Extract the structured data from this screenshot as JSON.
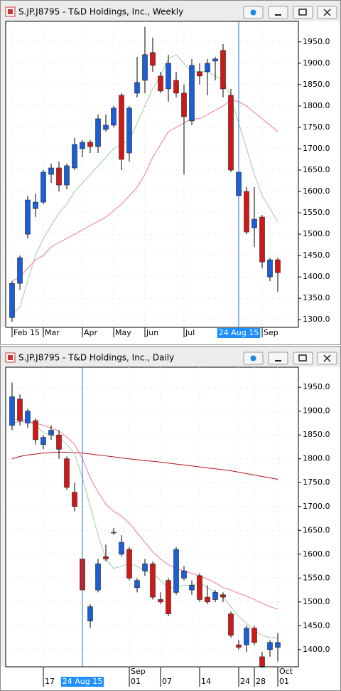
{
  "chart_data": [
    {
      "type": "candlestick",
      "title": "S.JP.J8795 - T&D Holdings, Inc., Weekly",
      "categories": [
        "Feb 15",
        null,
        null,
        null,
        "Mar",
        null,
        null,
        null,
        null,
        "Apr",
        null,
        null,
        null,
        "May",
        null,
        null,
        null,
        "Jun",
        null,
        null,
        null,
        null,
        "Jul",
        null,
        null,
        null,
        null,
        null,
        null,
        "24 Aug 15",
        null,
        null,
        "Sep",
        null,
        null
      ],
      "cursor": "24 Aug 15",
      "open": [
        1305,
        1385,
        1500,
        1560,
        1575,
        1640,
        1655,
        1615,
        1655,
        1700,
        1715,
        1705,
        1745,
        1755,
        1825,
        1690,
        1830,
        1860,
        1925,
        1870,
        1840,
        1860,
        1830,
        1765,
        1880,
        1880,
        1905,
        1930,
        1825,
        1590,
        1600,
        1515,
        1540,
        1400,
        1440
      ],
      "high": [
        1390,
        1450,
        1590,
        1595,
        1650,
        1665,
        1670,
        1665,
        1725,
        1720,
        1720,
        1780,
        1780,
        1800,
        1830,
        1800,
        1915,
        1985,
        1960,
        1880,
        1920,
        1880,
        1850,
        1910,
        1900,
        1910,
        1915,
        1945,
        1840,
        1645,
        1610,
        1610,
        1545,
        1445,
        1445
      ],
      "low": [
        1295,
        1370,
        1490,
        1540,
        1570,
        1620,
        1600,
        1605,
        1650,
        1680,
        1690,
        1690,
        1740,
        1750,
        1650,
        1670,
        1820,
        1830,
        1880,
        1830,
        1810,
        1820,
        1640,
        1755,
        1850,
        1825,
        1860,
        1820,
        1645,
        1580,
        1500,
        1470,
        1420,
        1390,
        1365
      ],
      "close": [
        1385,
        1445,
        1580,
        1575,
        1645,
        1655,
        1615,
        1660,
        1710,
        1715,
        1705,
        1770,
        1755,
        1795,
        1675,
        1795,
        1855,
        1920,
        1895,
        1835,
        1900,
        1830,
        1775,
        1895,
        1870,
        1900,
        1910,
        1840,
        1650,
        1645,
        1505,
        1535,
        1435,
        1440,
        1410
      ],
      "up_color": "#1a5fd6",
      "down_color": "#d01818",
      "moving_averages": [
        {
          "color": "#9ccf9c",
          "values": [
            1310,
            1330,
            1390,
            1450,
            1490,
            1520,
            1550,
            1570,
            1600,
            1620,
            1640,
            1660,
            1680,
            1700,
            1710,
            1720,
            1760,
            1800,
            1840,
            1870,
            1910,
            1920,
            1900,
            1880,
            1880,
            1880,
            1870,
            1860,
            1820,
            1760,
            1700,
            1640,
            1590,
            1560,
            1530
          ]
        },
        {
          "color": "#ee7a95",
          "values": [
            1390,
            1400,
            1420,
            1440,
            1450,
            1470,
            1480,
            1490,
            1500,
            1510,
            1520,
            1530,
            1540,
            1555,
            1570,
            1590,
            1610,
            1640,
            1680,
            1710,
            1740,
            1750,
            1760,
            1770,
            1770,
            1780,
            1790,
            1800,
            1815,
            1810,
            1800,
            1785,
            1770,
            1755,
            1740
          ]
        }
      ],
      "ylim": [
        1282,
        1998
      ],
      "yticks": [
        {
          "value": 1300,
          "label": "1300.0"
        },
        {
          "value": 1350,
          "label": "1350.0"
        },
        {
          "value": 1400,
          "label": "1400.0"
        },
        {
          "value": 1450,
          "label": "1450.0"
        },
        {
          "value": 1500,
          "label": "1500.0"
        },
        {
          "value": 1550,
          "label": "1550.0"
        },
        {
          "value": 1600,
          "label": "1600.0"
        },
        {
          "value": 1650,
          "label": "1650.0"
        },
        {
          "value": 1700,
          "label": "1700.0"
        },
        {
          "value": 1750,
          "label": "1750.0"
        },
        {
          "value": 1800,
          "label": "1800.0"
        },
        {
          "value": 1850,
          "label": "1850.0"
        },
        {
          "value": 1900,
          "label": "1900.0"
        },
        {
          "value": 1950,
          "label": "1950.0"
        }
      ],
      "grid": true
    },
    {
      "type": "candlestick",
      "title": "S.JP.J8795 - T&D Holdings, Inc., Daily",
      "categories": [
        null,
        null,
        null,
        null,
        "17",
        null,
        null,
        null,
        null,
        "24 Aug 15",
        null,
        null,
        null,
        null,
        null,
        "01",
        null,
        null,
        null,
        "07",
        null,
        null,
        null,
        null,
        "14",
        null,
        null,
        null,
        null,
        "24",
        null,
        "28",
        null,
        null,
        "01"
      ],
      "months": [
        null,
        null,
        null,
        null,
        null,
        null,
        null,
        null,
        null,
        null,
        null,
        null,
        null,
        null,
        null,
        "Sep",
        null,
        null,
        null,
        null,
        null,
        null,
        null,
        null,
        null,
        null,
        null,
        null,
        null,
        null,
        null,
        null,
        null,
        null,
        "Oct"
      ],
      "cursor": "24 Aug 15",
      "open": [
        1870,
        1925,
        1875,
        1880,
        1830,
        1850,
        1850,
        1800,
        1730,
        1590,
        1460,
        1525,
        1595,
        1645,
        1600,
        1610,
        1530,
        1565,
        1580,
        1505,
        1545,
        1520,
        1550,
        1525,
        1555,
        1510,
        1505,
        1515,
        1475,
        1410,
        1410,
        1445,
        1385,
        1400,
        1405
      ],
      "high": [
        1960,
        1935,
        1905,
        1885,
        1850,
        1870,
        1860,
        1805,
        1750,
        1600,
        1495,
        1590,
        1620,
        1655,
        1640,
        1615,
        1550,
        1590,
        1585,
        1520,
        1550,
        1615,
        1575,
        1545,
        1560,
        1535,
        1525,
        1520,
        1480,
        1420,
        1450,
        1450,
        1395,
        1420,
        1435
      ],
      "low": [
        1860,
        1870,
        1865,
        1830,
        1820,
        1840,
        1800,
        1735,
        1690,
        1520,
        1445,
        1520,
        1585,
        1640,
        1595,
        1545,
        1520,
        1555,
        1505,
        1495,
        1470,
        1515,
        1545,
        1515,
        1500,
        1495,
        1500,
        1500,
        1425,
        1400,
        1395,
        1410,
        1362,
        1385,
        1375
      ],
      "close": [
        1930,
        1880,
        1900,
        1840,
        1845,
        1860,
        1820,
        1740,
        1700,
        1525,
        1490,
        1580,
        1590,
        1646,
        1625,
        1550,
        1545,
        1580,
        1510,
        1500,
        1475,
        1610,
        1565,
        1535,
        1505,
        1500,
        1520,
        1510,
        1430,
        1405,
        1445,
        1415,
        1365,
        1415,
        1415
      ],
      "up_color": "#1a5fd6",
      "down_color": "#d01818",
      "moving_averages": [
        {
          "color": "#b40f1c",
          "values": [
            1800,
            1805,
            1808,
            1810,
            1812,
            1813,
            1814,
            1814,
            1813,
            1812,
            1810,
            1808,
            1806,
            1804,
            1802,
            1800,
            1798,
            1796,
            1795,
            1793,
            1791,
            1789,
            1787,
            1785,
            1783,
            1781,
            1779,
            1777,
            1775,
            1772,
            1769,
            1766,
            1763,
            1760,
            1757
          ]
        },
        {
          "color": "#ee7a95",
          "values": [
            1875,
            1878,
            1878,
            1875,
            1870,
            1865,
            1858,
            1845,
            1830,
            1800,
            1760,
            1730,
            1705,
            1690,
            1680,
            1665,
            1645,
            1625,
            1605,
            1590,
            1578,
            1570,
            1565,
            1560,
            1555,
            1548,
            1540,
            1530,
            1525,
            1518,
            1512,
            1505,
            1497,
            1490,
            1485
          ]
        },
        {
          "color": "#9ccf9c",
          "values": [
            1880,
            1885,
            1880,
            1870,
            1855,
            1850,
            1845,
            1830,
            1810,
            1760,
            1700,
            1640,
            1590,
            1570,
            1575,
            1580,
            1575,
            1565,
            1560,
            1545,
            1530,
            1530,
            1535,
            1535,
            1540,
            1530,
            1520,
            1510,
            1490,
            1470,
            1455,
            1440,
            1430,
            1425,
            1425
          ]
        }
      ],
      "ylim": [
        1364,
        1992
      ],
      "yticks": [
        {
          "value": 1400,
          "label": "1400.0"
        },
        {
          "value": 1450,
          "label": "1450.0"
        },
        {
          "value": 1500,
          "label": "1500.0"
        },
        {
          "value": 1550,
          "label": "1550.0"
        },
        {
          "value": 1600,
          "label": "1600.0"
        },
        {
          "value": 1650,
          "label": "1650.0"
        },
        {
          "value": 1700,
          "label": "1700.0"
        },
        {
          "value": 1750,
          "label": "1750.0"
        },
        {
          "value": 1800,
          "label": "1800.0"
        },
        {
          "value": 1850,
          "label": "1850.0"
        },
        {
          "value": 1900,
          "label": "1900.0"
        },
        {
          "value": 1950,
          "label": "1950.0"
        }
      ],
      "grid": true
    }
  ]
}
